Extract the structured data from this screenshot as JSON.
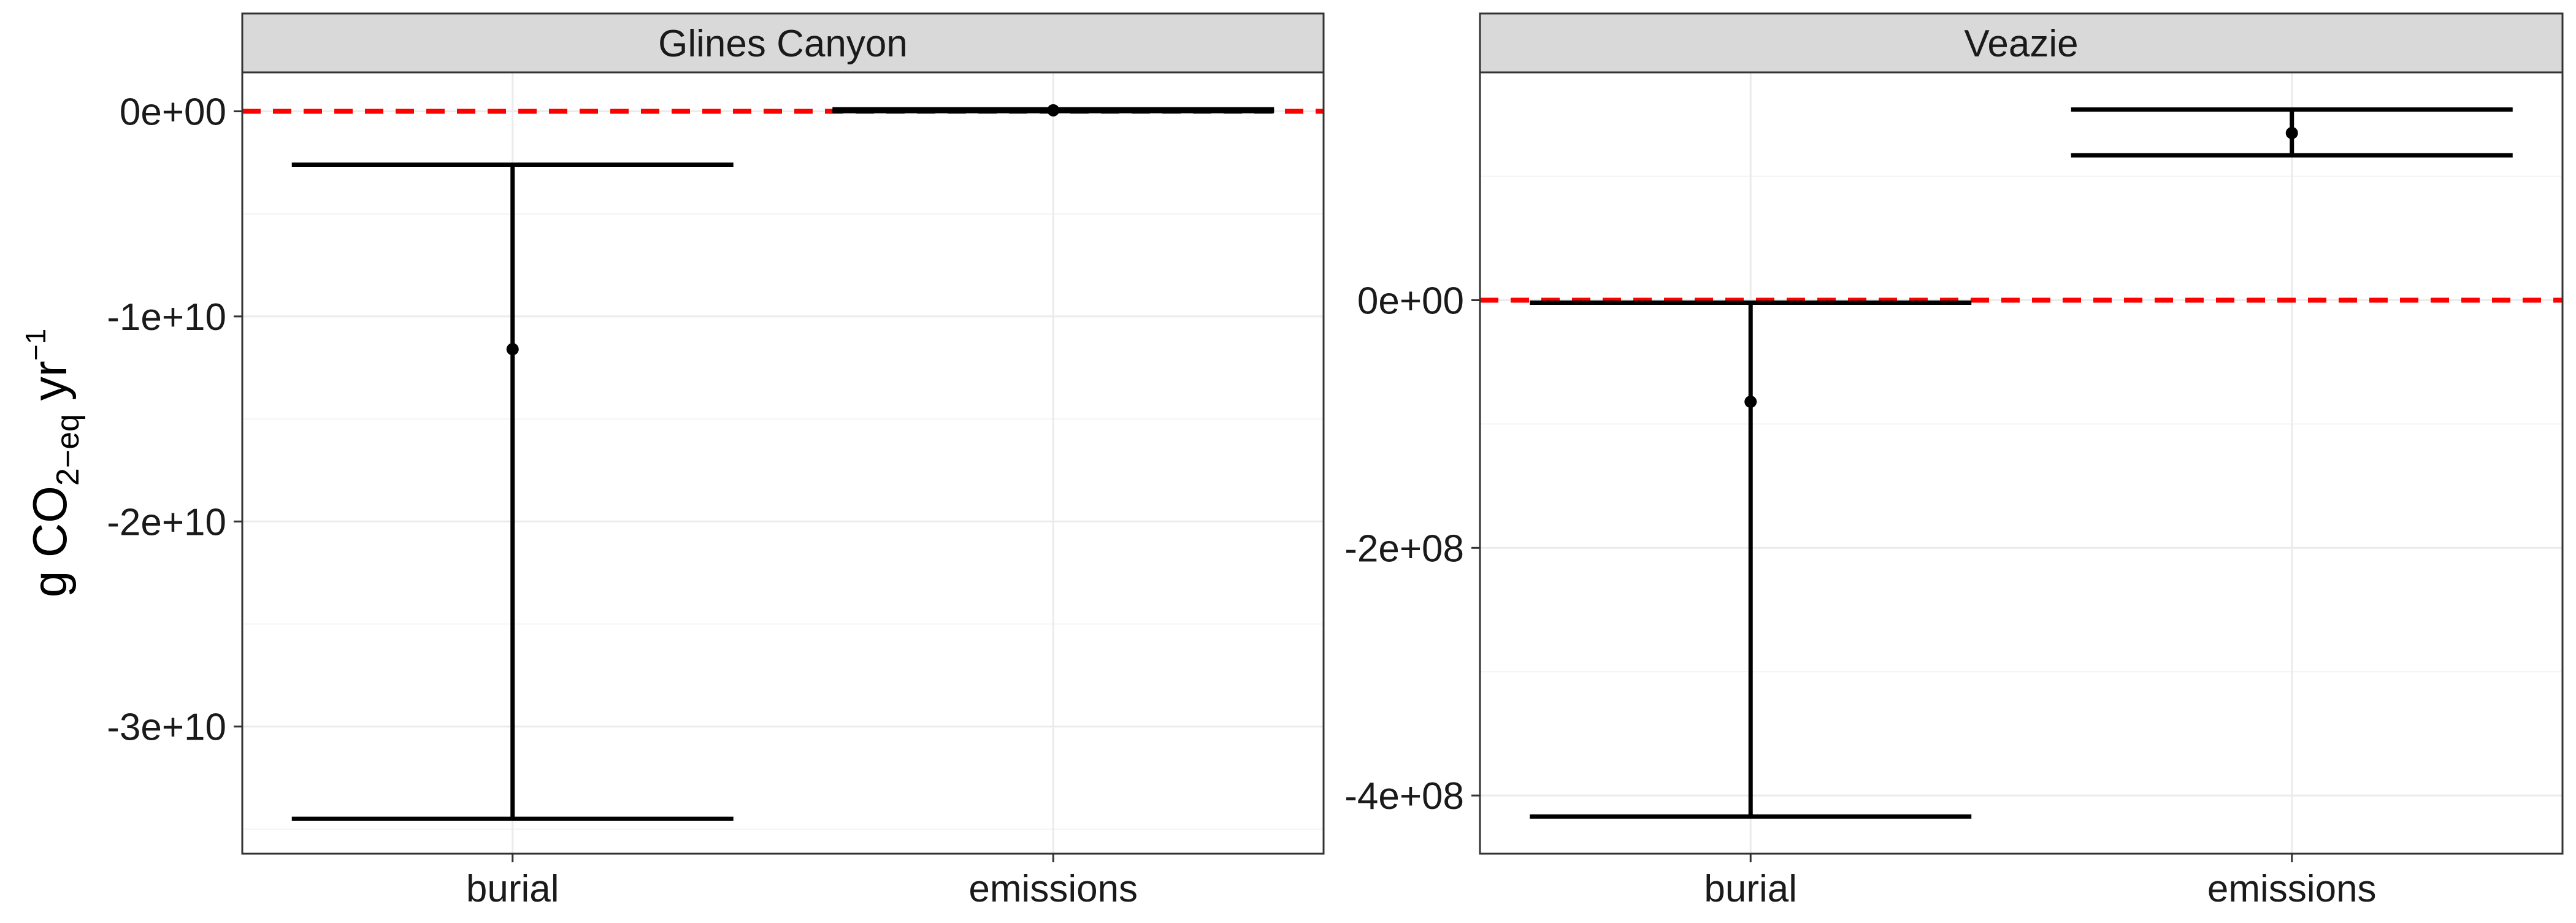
{
  "chart_data": [
    {
      "type": "errorbar",
      "facet_title": "Glines Canyon",
      "ylabel": "g CO2-eq yr-1",
      "ylabel_parts": {
        "base": "g CO",
        "sub": "2−eq",
        "mid": " yr",
        "sup": "−1"
      },
      "categories": [
        "burial",
        "emissions"
      ],
      "points": [
        {
          "category": "burial",
          "y": -11600000000.0,
          "ymin": -34500000000.0,
          "ymax": -2600000000.0
        },
        {
          "category": "emissions",
          "y": 50000000.0,
          "ymin": 10000000.0,
          "ymax": 100000000.0
        }
      ],
      "yticks": [
        0,
        -10000000000.0,
        -20000000000.0,
        -30000000000.0
      ],
      "ytick_labels": [
        "0e+00",
        "-1e+10",
        "-2e+10",
        "-3e+10"
      ],
      "ylim": [
        -36200000000.0,
        1900000000.0
      ],
      "reference_line": {
        "y": 0,
        "color": "#ff0000",
        "style": "dashed"
      },
      "grid": true
    },
    {
      "type": "errorbar",
      "facet_title": "Veazie",
      "ylabel": "",
      "categories": [
        "burial",
        "emissions"
      ],
      "points": [
        {
          "category": "burial",
          "y": -82000000.0,
          "ymin": -417000000.0,
          "ymax": -2000000.0
        },
        {
          "category": "emissions",
          "y": 135000000.0,
          "ymin": 117000000.0,
          "ymax": 154000000.0
        }
      ],
      "yticks": [
        0,
        -200000000.0,
        -400000000.0
      ],
      "ytick_labels": [
        "0e+00",
        "-2e+08",
        "-4e+08"
      ],
      "ylim": [
        -447000000.0,
        184000000.0
      ],
      "reference_line": {
        "y": 0,
        "color": "#ff0000",
        "style": "dashed"
      },
      "grid": true
    }
  ],
  "colors": {
    "reference_line": "#ff0000",
    "strip_fill": "#d9d9d9",
    "grid_major": "#ebebeb",
    "grid_minor": "#f4f4f4",
    "marks": "#000000"
  }
}
